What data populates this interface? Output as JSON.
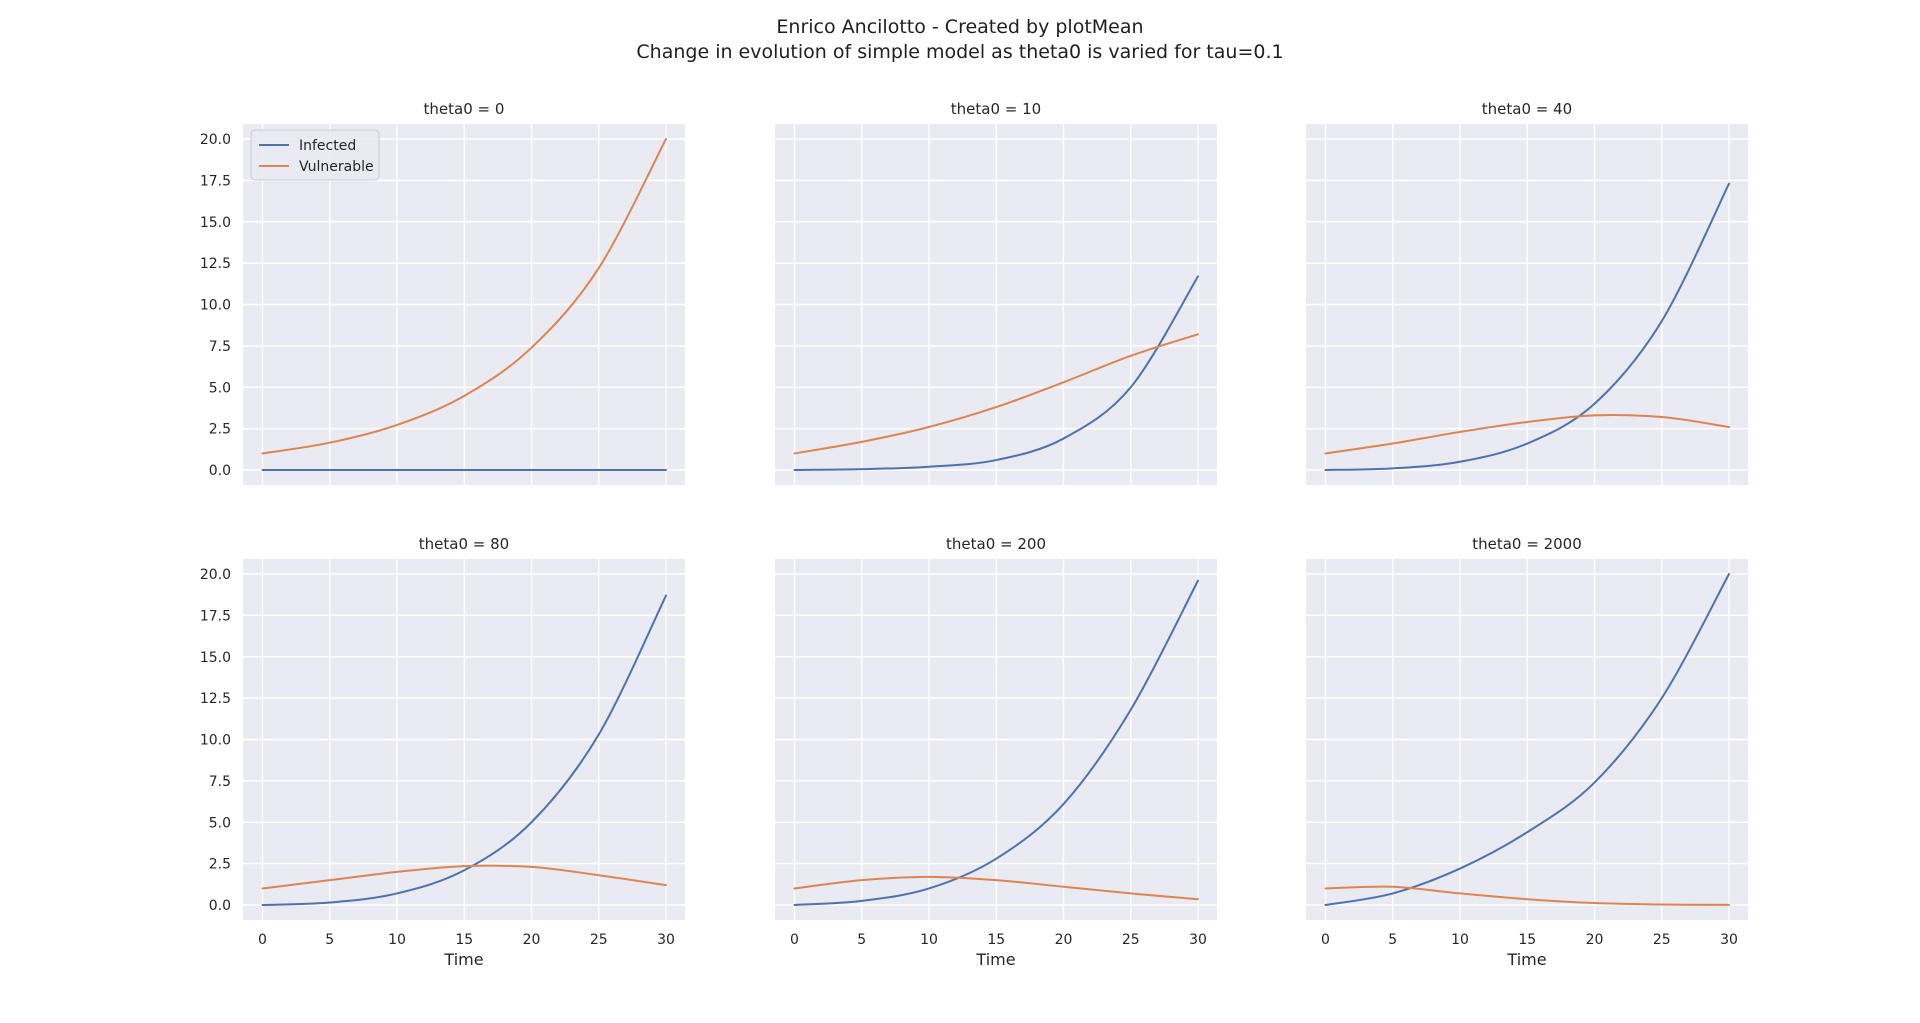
{
  "suptitle": {
    "line1": "Enrico Ancilotto - Created by plotMean",
    "line2": "Change in evolution of simple model as theta0 is varied for tau=0.1"
  },
  "colors": {
    "infected": "#4c72b0",
    "vulnerable": "#dd8452",
    "panel_bg": "#eaeaf2",
    "grid": "#ffffff"
  },
  "legend": {
    "placement": "upper-left of first panel",
    "entries": [
      "Infected",
      "Vulnerable"
    ]
  },
  "chart_data": [
    {
      "type": "line",
      "title": "theta0 = 0",
      "xlabel": "",
      "xlim": [
        0,
        30
      ],
      "ylim": [
        0,
        20
      ],
      "xticks": [
        0,
        5,
        10,
        15,
        20,
        25,
        30
      ],
      "yticks": [
        0.0,
        2.5,
        5.0,
        7.5,
        10.0,
        12.5,
        15.0,
        17.5,
        20.0
      ],
      "x": [
        0,
        5,
        10,
        15,
        20,
        25,
        30
      ],
      "series": [
        {
          "name": "Infected",
          "values": [
            0,
            0,
            0,
            0,
            0,
            0,
            0
          ]
        },
        {
          "name": "Vulnerable",
          "values": [
            1.0,
            1.65,
            2.72,
            4.48,
            7.39,
            12.2,
            20.0
          ]
        }
      ]
    },
    {
      "type": "line",
      "title": "theta0 = 10",
      "xlabel": "",
      "xlim": [
        0,
        30
      ],
      "ylim": [
        0,
        20
      ],
      "xticks": [
        0,
        5,
        10,
        15,
        20,
        25,
        30
      ],
      "yticks": [
        0.0,
        2.5,
        5.0,
        7.5,
        10.0,
        12.5,
        15.0,
        17.5,
        20.0
      ],
      "x": [
        0,
        5,
        10,
        15,
        20,
        25,
        30
      ],
      "series": [
        {
          "name": "Infected",
          "values": [
            0.0,
            0.05,
            0.2,
            0.6,
            1.9,
            5.0,
            11.7
          ]
        },
        {
          "name": "Vulnerable",
          "values": [
            1.0,
            1.7,
            2.6,
            3.8,
            5.3,
            6.9,
            8.2
          ]
        }
      ]
    },
    {
      "type": "line",
      "title": "theta0 = 40",
      "xlabel": "",
      "xlim": [
        0,
        30
      ],
      "ylim": [
        0,
        20
      ],
      "xticks": [
        0,
        5,
        10,
        15,
        20,
        25,
        30
      ],
      "yticks": [
        0.0,
        2.5,
        5.0,
        7.5,
        10.0,
        12.5,
        15.0,
        17.5,
        20.0
      ],
      "x": [
        0,
        5,
        10,
        15,
        20,
        25,
        30
      ],
      "series": [
        {
          "name": "Infected",
          "values": [
            0.0,
            0.1,
            0.5,
            1.6,
            4.0,
            9.0,
            17.3
          ]
        },
        {
          "name": "Vulnerable",
          "values": [
            1.0,
            1.6,
            2.3,
            2.9,
            3.3,
            3.2,
            2.6
          ]
        }
      ]
    },
    {
      "type": "line",
      "title": "theta0 = 80",
      "xlabel": "Time",
      "xlim": [
        0,
        30
      ],
      "ylim": [
        0,
        20
      ],
      "xticks": [
        0,
        5,
        10,
        15,
        20,
        25,
        30
      ],
      "yticks": [
        0.0,
        2.5,
        5.0,
        7.5,
        10.0,
        12.5,
        15.0,
        17.5,
        20.0
      ],
      "x": [
        0,
        5,
        10,
        15,
        20,
        25,
        30
      ],
      "series": [
        {
          "name": "Infected",
          "values": [
            0.0,
            0.15,
            0.7,
            2.1,
            5.0,
            10.3,
            18.7
          ]
        },
        {
          "name": "Vulnerable",
          "values": [
            1.0,
            1.5,
            2.0,
            2.35,
            2.3,
            1.8,
            1.2
          ]
        }
      ]
    },
    {
      "type": "line",
      "title": "theta0 = 200",
      "xlabel": "Time",
      "xlim": [
        0,
        30
      ],
      "ylim": [
        0,
        20
      ],
      "xticks": [
        0,
        5,
        10,
        15,
        20,
        25,
        30
      ],
      "yticks": [
        0.0,
        2.5,
        5.0,
        7.5,
        10.0,
        12.5,
        15.0,
        17.5,
        20.0
      ],
      "x": [
        0,
        5,
        10,
        15,
        20,
        25,
        30
      ],
      "series": [
        {
          "name": "Infected",
          "values": [
            0.0,
            0.25,
            1.0,
            2.8,
            6.1,
            11.8,
            19.6
          ]
        },
        {
          "name": "Vulnerable",
          "values": [
            1.0,
            1.5,
            1.7,
            1.5,
            1.1,
            0.7,
            0.35
          ]
        }
      ]
    },
    {
      "type": "line",
      "title": "theta0 = 2000",
      "xlabel": "Time",
      "xlim": [
        0,
        30
      ],
      "ylim": [
        0,
        20
      ],
      "xticks": [
        0,
        5,
        10,
        15,
        20,
        25,
        30
      ],
      "yticks": [
        0.0,
        2.5,
        5.0,
        7.5,
        10.0,
        12.5,
        15.0,
        17.5,
        20.0
      ],
      "x": [
        0,
        5,
        10,
        15,
        20,
        25,
        30
      ],
      "series": [
        {
          "name": "Infected",
          "values": [
            0.0,
            0.7,
            2.2,
            4.4,
            7.4,
            12.5,
            20.0
          ]
        },
        {
          "name": "Vulnerable",
          "values": [
            1.0,
            1.1,
            0.7,
            0.35,
            0.12,
            0.03,
            0.01
          ]
        }
      ]
    }
  ]
}
